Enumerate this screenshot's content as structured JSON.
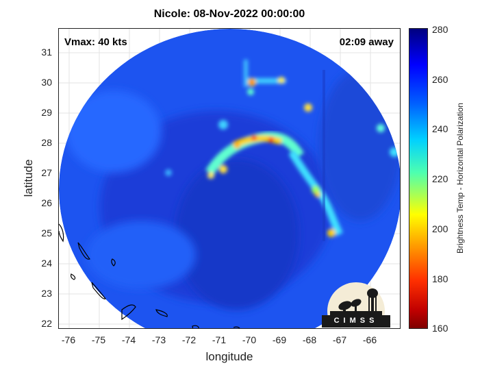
{
  "title": "Nicole: 08-Nov-2022 00:00:00",
  "vmax_label": "Vmax: 40 kts",
  "time_away_label": "02:09 away",
  "axes": {
    "xlabel": "longitude",
    "ylabel": "latitude",
    "x_ticks": [
      "-76",
      "-75",
      "-74",
      "-73",
      "-72",
      "-71",
      "-70",
      "-69",
      "-68",
      "-67",
      "-66"
    ],
    "y_ticks": [
      "31",
      "30",
      "29",
      "28",
      "27",
      "26",
      "25",
      "24",
      "23",
      "22"
    ],
    "x_range": [
      -76.3,
      -64.9
    ],
    "y_range": [
      21.8,
      31.8
    ]
  },
  "colorbar": {
    "label": "Brightness Temp - Horizontal Polarization",
    "ticks": [
      "280",
      "260",
      "240",
      "220",
      "200",
      "180",
      "160"
    ],
    "range": [
      160,
      280
    ],
    "colormap": "jet"
  },
  "logo": {
    "text": "CIMSS"
  },
  "colors": {
    "background_swath": "#1d54f0",
    "land_outline": "#000000",
    "warm_band": "#ff3000",
    "cool_band": "#60ffd0"
  }
}
